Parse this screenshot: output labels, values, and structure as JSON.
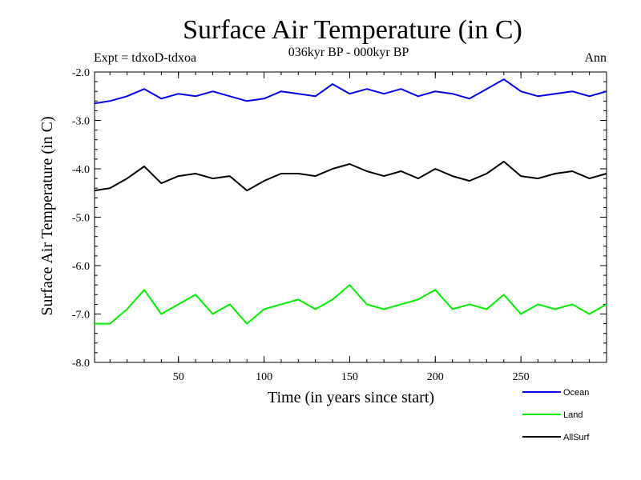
{
  "chart_data": {
    "type": "line",
    "title": "Surface Air Temperature (in C)",
    "subtitle": "036kyr BP - 000kyr BP",
    "left_note": "Expt = tdxoD-tdxoa",
    "right_note": "Ann",
    "xlabel": "Time (in years since start)",
    "ylabel": "Surface Air Temperature (in C)",
    "xlim": [
      1,
      300
    ],
    "ylim": [
      -8.0,
      -2.0
    ],
    "x_ticks": [
      50,
      100,
      150,
      200,
      250
    ],
    "y_ticks": [
      -8.0,
      -7.0,
      -6.0,
      -5.0,
      -4.0,
      -3.0,
      -2.0
    ],
    "y_tick_labels": [
      "-8.0",
      "-7.0",
      "-6.0",
      "-5.0",
      "-4.0",
      "-3.0",
      "-2.0"
    ],
    "grid": false,
    "legend_position": "bottom-right",
    "x_step": 10,
    "series": [
      {
        "name": "Ocean",
        "color": "#0000ee",
        "x": [
          1,
          10,
          20,
          30,
          40,
          50,
          60,
          70,
          80,
          90,
          100,
          110,
          120,
          130,
          140,
          150,
          160,
          170,
          180,
          190,
          200,
          210,
          220,
          230,
          240,
          250,
          260,
          270,
          280,
          290,
          300
        ],
        "values": [
          -2.65,
          -2.6,
          -2.5,
          -2.35,
          -2.55,
          -2.45,
          -2.5,
          -2.4,
          -2.5,
          -2.6,
          -2.55,
          -2.4,
          -2.45,
          -2.5,
          -2.25,
          -2.45,
          -2.35,
          -2.45,
          -2.35,
          -2.5,
          -2.4,
          -2.45,
          -2.55,
          -2.35,
          -2.15,
          -2.4,
          -2.5,
          -2.45,
          -2.4,
          -2.5,
          -2.4
        ]
      },
      {
        "name": "Land",
        "color": "#00ee00",
        "x": [
          1,
          10,
          20,
          30,
          40,
          50,
          60,
          70,
          80,
          90,
          100,
          110,
          120,
          130,
          140,
          150,
          160,
          170,
          180,
          190,
          200,
          210,
          220,
          230,
          240,
          250,
          260,
          270,
          280,
          290,
          300
        ],
        "values": [
          -7.2,
          -7.2,
          -6.9,
          -6.5,
          -7.0,
          -6.8,
          -6.6,
          -7.0,
          -6.8,
          -7.2,
          -6.9,
          -6.8,
          -6.7,
          -6.9,
          -6.7,
          -6.4,
          -6.8,
          -6.9,
          -6.8,
          -6.7,
          -6.5,
          -6.9,
          -6.8,
          -6.9,
          -6.6,
          -7.0,
          -6.8,
          -6.9,
          -6.8,
          -7.0,
          -6.8
        ]
      },
      {
        "name": "AllSurf",
        "color": "#000000",
        "x": [
          1,
          10,
          20,
          30,
          40,
          50,
          60,
          70,
          80,
          90,
          100,
          110,
          120,
          130,
          140,
          150,
          160,
          170,
          180,
          190,
          200,
          210,
          220,
          230,
          240,
          250,
          260,
          270,
          280,
          290,
          300
        ],
        "values": [
          -4.45,
          -4.4,
          -4.2,
          -3.95,
          -4.3,
          -4.15,
          -4.1,
          -4.2,
          -4.15,
          -4.45,
          -4.25,
          -4.1,
          -4.1,
          -4.15,
          -4.0,
          -3.9,
          -4.05,
          -4.15,
          -4.05,
          -4.2,
          -4.0,
          -4.15,
          -4.25,
          -4.1,
          -3.85,
          -4.15,
          -4.2,
          -4.1,
          -4.05,
          -4.2,
          -4.1
        ]
      }
    ]
  }
}
